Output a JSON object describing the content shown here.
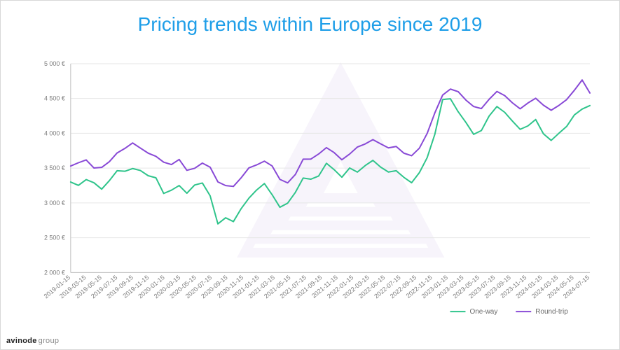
{
  "title": "Pricing trends within Europe since 2019",
  "logo": {
    "brand": "avinode",
    "suffix": "group"
  },
  "chart": {
    "type": "line",
    "background_color": "#ffffff",
    "axis_color": "#bfbfbf",
    "grid_color": "#e6e6e6",
    "tick_label_color": "#7a7a7a",
    "tick_label_fontsize": 9,
    "watermark_color": "#f3edf9",
    "ylim": [
      2000,
      5000
    ],
    "ytick_step": 500,
    "y_suffix": " €",
    "y_thousand_sep": " ",
    "x_labels": [
      "2019-01-15",
      "2019-03-15",
      "2019-05-15",
      "2019-07-15",
      "2019-09-15",
      "2019-11-15",
      "2020-01-15",
      "2020-03-15",
      "2020-05-15",
      "2020-07-15",
      "2020-09-15",
      "2020-11-15",
      "2021-01-15",
      "2021-03-15",
      "2021-05-15",
      "2021-07-15",
      "2021-09-15",
      "2021-11-15",
      "2022-01-15",
      "2022-03-15",
      "2022-05-15",
      "2022-07-15",
      "2022-09-15",
      "2022-11-15",
      "2023-01-15",
      "2023-03-15",
      "2023-05-15",
      "2023-07-15",
      "2023-09-15",
      "2023-11-15",
      "2024-01-15",
      "2024-03-15",
      "2024-05-15",
      "2024-07-15"
    ],
    "legend": {
      "position": "bottom-right-inside",
      "label_fontsize": 10,
      "label_color": "#6a6a6a"
    },
    "series": [
      {
        "name": "One-way",
        "color": "#2fc48b",
        "line_width": 2,
        "values": [
          3300,
          3250,
          3350,
          3300,
          3200,
          3320,
          3480,
          3440,
          3490,
          3470,
          3400,
          3350,
          3130,
          3200,
          3250,
          3150,
          3250,
          3300,
          3100,
          2700,
          2800,
          2750,
          2900,
          3050,
          3200,
          3280,
          3100,
          2950,
          3000,
          3150,
          3350,
          3350,
          3400,
          3550,
          3480,
          3380,
          3500,
          3450,
          3550,
          3600,
          3520,
          3450,
          3480,
          3350,
          3300,
          3420,
          3650,
          4000,
          4480,
          4500,
          4300,
          4150,
          4000,
          4050,
          4250,
          4400,
          4320,
          4180,
          4050,
          4100,
          4180,
          4000,
          3900,
          4000,
          4100,
          4250,
          4350,
          4400
        ]
      },
      {
        "name": "Round-trip",
        "color": "#8849d6",
        "line_width": 2,
        "values": [
          3550,
          3580,
          3620,
          3520,
          3500,
          3600,
          3700,
          3800,
          3880,
          3800,
          3700,
          3650,
          3600,
          3550,
          3620,
          3480,
          3500,
          3580,
          3500,
          3320,
          3250,
          3240,
          3350,
          3500,
          3550,
          3620,
          3550,
          3350,
          3300,
          3420,
          3640,
          3620,
          3700,
          3780,
          3740,
          3620,
          3700,
          3800,
          3850,
          3900,
          3840,
          3780,
          3800,
          3700,
          3660,
          3800,
          4000,
          4300,
          4560,
          4620,
          4600,
          4480,
          4380,
          4350,
          4500,
          4620,
          4550,
          4420,
          4350,
          4420,
          4520,
          4400,
          4320,
          4380,
          4480,
          4620,
          4780,
          4560
        ]
      }
    ]
  }
}
